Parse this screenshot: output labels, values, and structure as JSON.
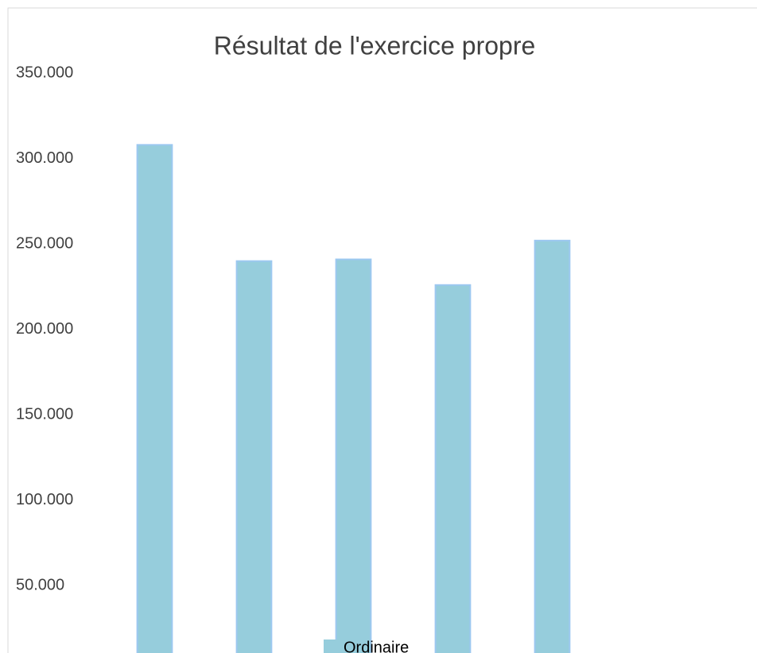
{
  "chart_data": {
    "type": "bar",
    "title": "Résultat de l'exercice propre",
    "categories": [
      null,
      null,
      null,
      null,
      null
    ],
    "series": [
      {
        "name": "Ordinaire",
        "color": "#96cddc",
        "values": [
          308000,
          240000,
          241000,
          226000,
          252000
        ]
      }
    ],
    "ylim": [
      0,
      350000
    ],
    "yticks": [
      {
        "value": 50000,
        "label": "50.000"
      },
      {
        "value": 100000,
        "label": "100.000"
      },
      {
        "value": 150000,
        "label": "150.000"
      },
      {
        "value": 200000,
        "label": "200.000"
      },
      {
        "value": 250000,
        "label": "250.000"
      },
      {
        "value": 300000,
        "label": "300.000"
      },
      {
        "value": 350000,
        "label": "350.000"
      }
    ],
    "grid": false,
    "legend": "bottom"
  }
}
